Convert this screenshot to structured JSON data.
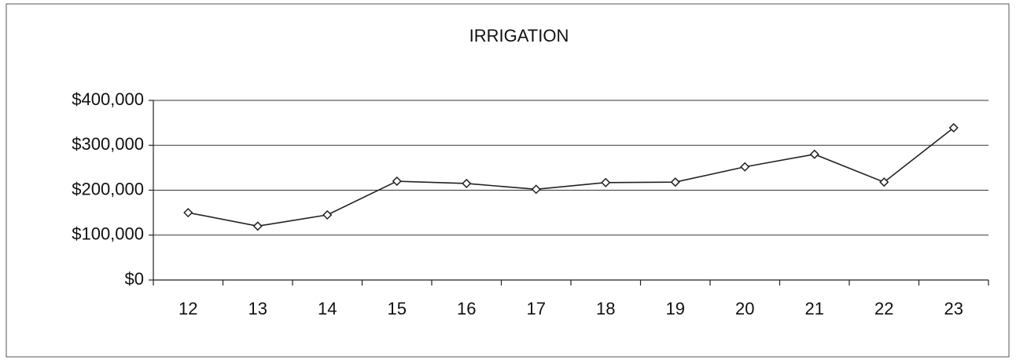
{
  "chart_data": {
    "type": "line",
    "title": "IRRIGATION",
    "categories": [
      "12",
      "13",
      "14",
      "15",
      "16",
      "17",
      "18",
      "19",
      "20",
      "21",
      "22",
      "23"
    ],
    "series": [
      {
        "name": "Irrigation",
        "color": "#222222",
        "values": [
          150000,
          120000,
          145000,
          220000,
          215000,
          202000,
          217000,
          218000,
          252000,
          280000,
          218000,
          339000
        ]
      }
    ],
    "ylim": [
      0,
      400000
    ],
    "yticks": [
      {
        "value": 0,
        "label": "$0"
      },
      {
        "value": 100000,
        "label": "$100,000"
      },
      {
        "value": 200000,
        "label": "$200,000"
      },
      {
        "value": 300000,
        "label": "$300,000"
      },
      {
        "value": 400000,
        "label": "$400,000"
      }
    ],
    "grid": true
  }
}
